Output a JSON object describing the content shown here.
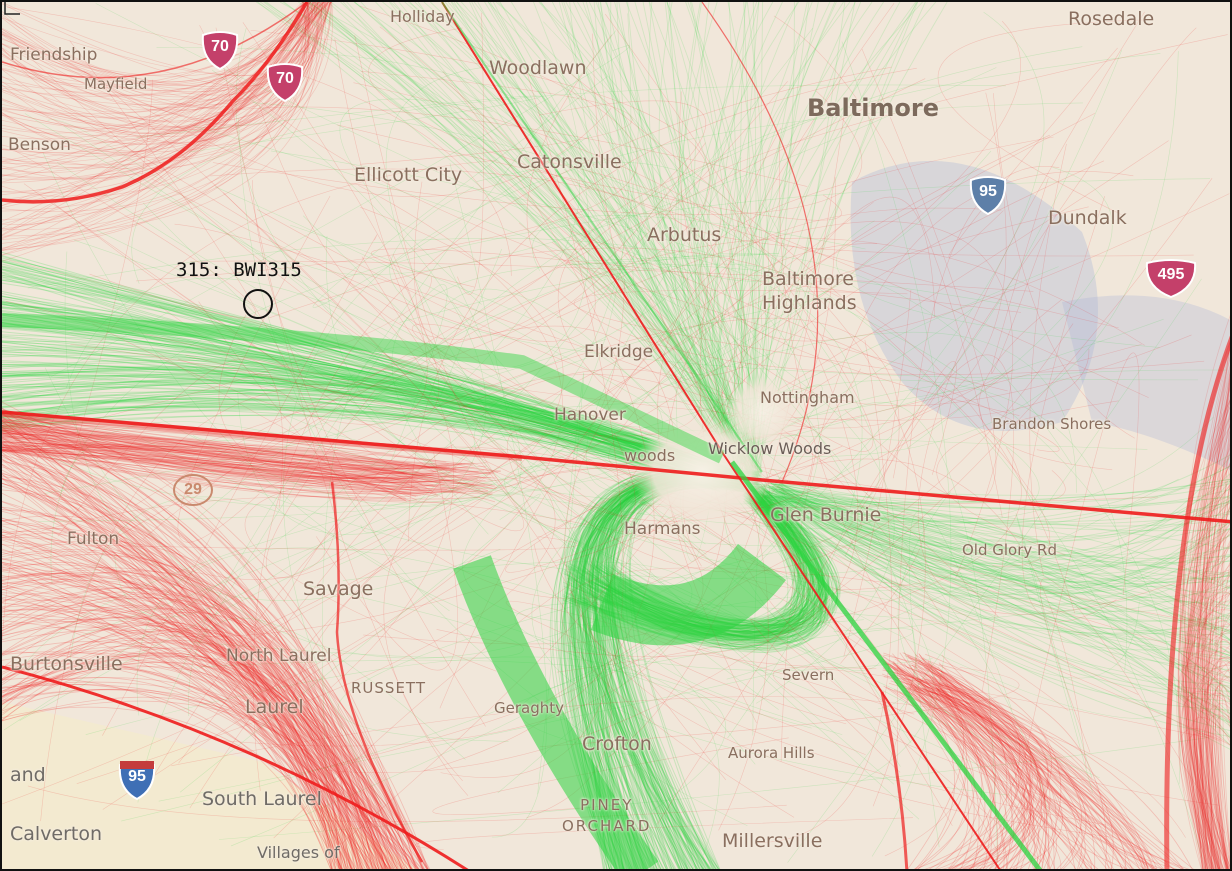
{
  "map": {
    "places": [
      {
        "id": "rosedale",
        "label": "Rosedale"
      },
      {
        "id": "holliday",
        "label": "Holliday"
      },
      {
        "id": "friendship",
        "label": "Friendship"
      },
      {
        "id": "mayfield",
        "label": "Mayfield"
      },
      {
        "id": "woodlawn",
        "label": "Woodlawn"
      },
      {
        "id": "baltimore",
        "label": "Baltimore"
      },
      {
        "id": "benson",
        "label": "Benson"
      },
      {
        "id": "ellicott-city",
        "label": "Ellicott City"
      },
      {
        "id": "catonsville",
        "label": "Catonsville"
      },
      {
        "id": "dundalk",
        "label": "Dundalk"
      },
      {
        "id": "arbutus",
        "label": "Arbutus"
      },
      {
        "id": "baltimore-highlands",
        "label": "Baltimore\nHighlands"
      },
      {
        "id": "elkridge",
        "label": "Elkridge"
      },
      {
        "id": "nottingham",
        "label": "Nottingham"
      },
      {
        "id": "hanover",
        "label": "Hanover"
      },
      {
        "id": "brandon-shores",
        "label": "Brandon Shores"
      },
      {
        "id": "wicklow-woods",
        "label": "Wicklow Woods"
      },
      {
        "id": "woods",
        "label": "woods"
      },
      {
        "id": "glen-burnie",
        "label": "Glen Burnie"
      },
      {
        "id": "harmans",
        "label": "Harmans"
      },
      {
        "id": "old-glory",
        "label": "Old Glory Rd"
      },
      {
        "id": "fulton",
        "label": "Fulton"
      },
      {
        "id": "savage",
        "label": "Savage"
      },
      {
        "id": "burtonsville",
        "label": "Burtonsville"
      },
      {
        "id": "north-laurel",
        "label": "North Laurel"
      },
      {
        "id": "laurel",
        "label": "Laurel"
      },
      {
        "id": "russett",
        "label": "RUSSETT"
      },
      {
        "id": "geraghty",
        "label": "Geraghty"
      },
      {
        "id": "crofton",
        "label": "Crofton"
      },
      {
        "id": "aurora-hills",
        "label": "Aurora Hills"
      },
      {
        "id": "severn",
        "label": "Severn"
      },
      {
        "id": "land",
        "label": "and"
      },
      {
        "id": "south-laurel",
        "label": "South Laurel"
      },
      {
        "id": "calverton",
        "label": "Calverton"
      },
      {
        "id": "villages-of",
        "label": "Villages of"
      },
      {
        "id": "piney-orchard",
        "label": "PINEY\nORCHARD"
      },
      {
        "id": "millersville",
        "label": "Millersville"
      }
    ],
    "shields": [
      {
        "id": "i70-a",
        "label": "70",
        "color": "#c4406a"
      },
      {
        "id": "i70-b",
        "label": "70",
        "color": "#c4406a"
      },
      {
        "id": "i95-north",
        "label": "95",
        "color": "#5d7fa8"
      },
      {
        "id": "i495",
        "label": "495",
        "color": "#c4406a"
      },
      {
        "id": "us29",
        "label": "29",
        "color": "#c9896d"
      },
      {
        "id": "i95-south",
        "label": "95",
        "color": "#3f6fb5"
      }
    ],
    "station": {
      "label": "315: BWI315"
    }
  }
}
